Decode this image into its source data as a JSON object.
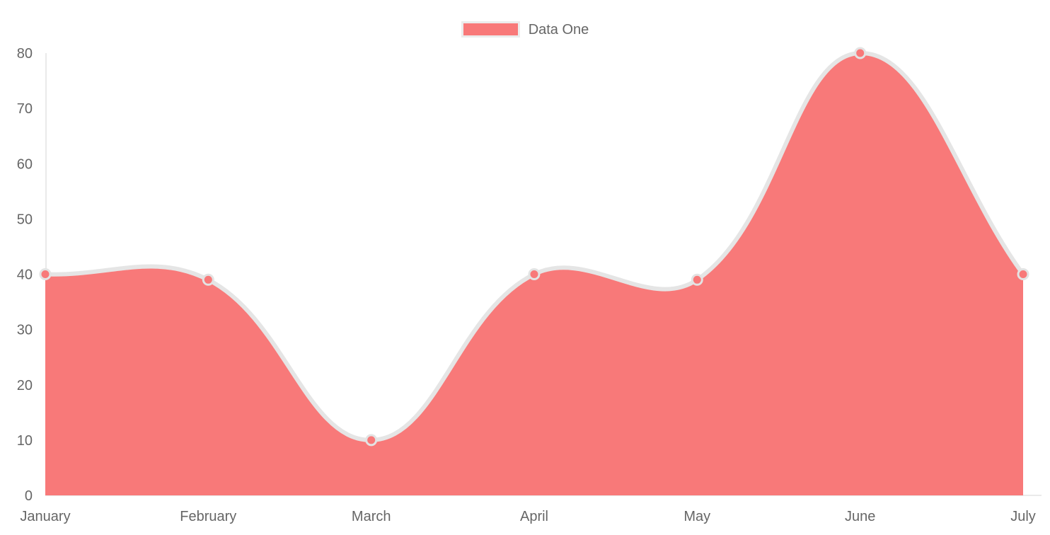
{
  "legend": {
    "position": "top",
    "items": [
      {
        "label": "Data One",
        "color": "#f87979"
      }
    ]
  },
  "chart_data": {
    "type": "area",
    "title": "",
    "categories": [
      "January",
      "February",
      "March",
      "April",
      "May",
      "June",
      "July"
    ],
    "series": [
      {
        "name": "Data One",
        "values": [
          40,
          39,
          10,
          40,
          39,
          80,
          40
        ],
        "fill_color": "#f87979",
        "line_color": "#e5e5e5",
        "point_fill_color": "#f87979",
        "point_border_color": "#e3e3e3"
      }
    ],
    "xlabel": "",
    "ylabel": "",
    "ylim": [
      0,
      80
    ],
    "y_ticks": [
      0,
      10,
      20,
      30,
      40,
      50,
      60,
      70,
      80
    ],
    "grid": false,
    "axis_line_color": "#eaeaea",
    "tick_label_color": "#666666",
    "legend_position": "top",
    "curve": "cubic-bezier-tension-0.4"
  }
}
